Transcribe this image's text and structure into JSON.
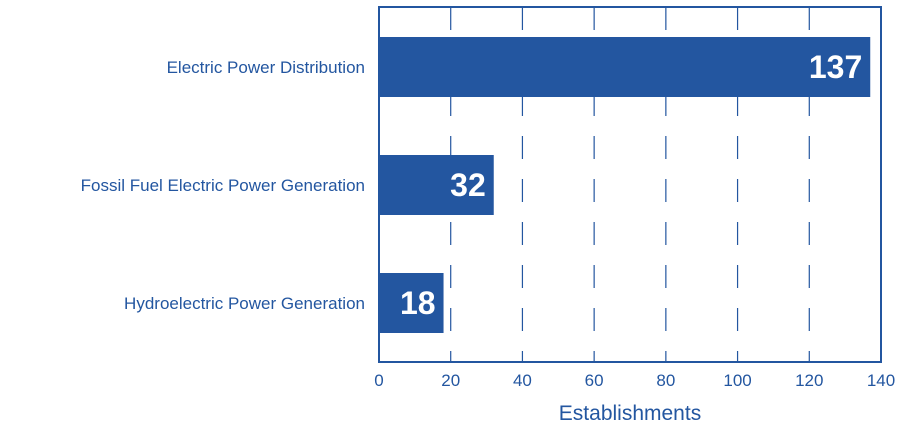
{
  "chart_data": {
    "type": "bar",
    "orientation": "horizontal",
    "categories": [
      "Electric Power Distribution",
      "Fossil Fuel Electric Power Generation",
      "Hydroelectric Power Generation"
    ],
    "values": [
      137,
      32,
      18
    ],
    "value_labels": [
      "137",
      "32",
      "18"
    ],
    "xlabel": "Establishments",
    "ylabel": "",
    "xlim": [
      0,
      140
    ],
    "xticks": [
      0,
      20,
      40,
      60,
      80,
      100,
      120,
      140
    ],
    "xtick_labels": [
      "0",
      "20",
      "40",
      "60",
      "80",
      "100",
      "120",
      "140"
    ],
    "grid": "vertical dashed lines",
    "colors": {
      "bar": "#2356a0",
      "text": "#2356a0",
      "value_label": "#ffffff",
      "frame": "#2356a0"
    }
  }
}
